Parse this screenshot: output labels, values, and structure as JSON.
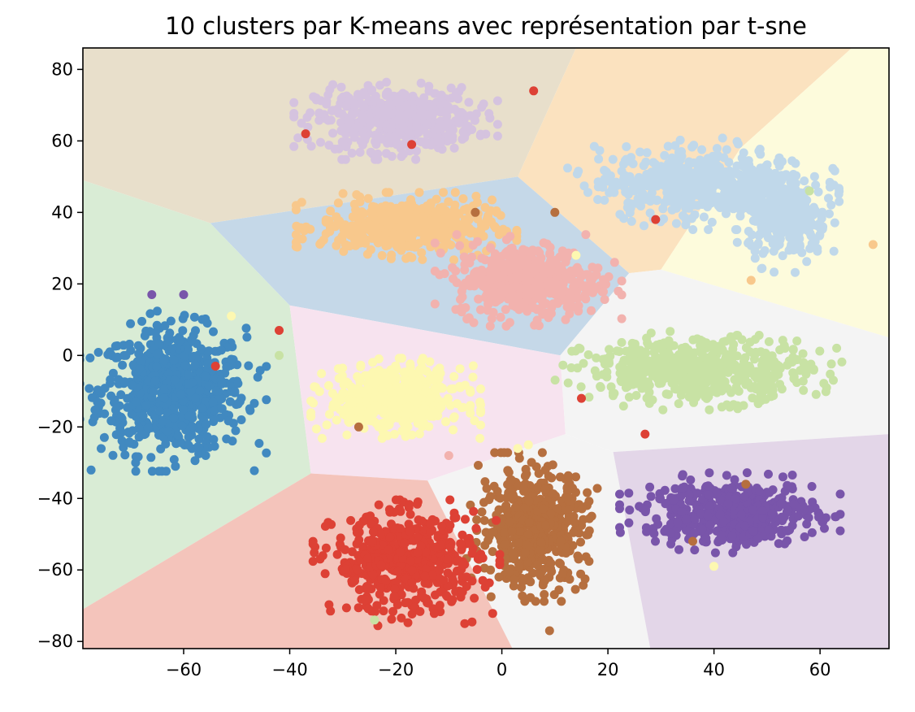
{
  "chart_data": {
    "type": "scatter",
    "title": "10 clusters par K-means avec représentation par t-sne",
    "xlabel": "",
    "ylabel": "",
    "xlim": [
      -79,
      73
    ],
    "ylim": [
      -82,
      86
    ],
    "grid": false,
    "legend": "none",
    "x_ticks": [
      -60,
      -40,
      -20,
      0,
      20,
      40,
      60
    ],
    "x_tick_labels": [
      "−60",
      "−40",
      "−20",
      "0",
      "20",
      "40",
      "60"
    ],
    "y_ticks": [
      -80,
      -60,
      -40,
      -20,
      0,
      20,
      40,
      60,
      80
    ],
    "y_tick_labels": [
      "−80",
      "−60",
      "−40",
      "−20",
      "0",
      "20",
      "40",
      "60",
      "80"
    ],
    "background_regions": [
      {
        "color": "#e8dfcb",
        "polygon": [
          [
            -79,
            86
          ],
          [
            14,
            86
          ],
          [
            3,
            50
          ],
          [
            -55,
            37
          ],
          [
            -79,
            49
          ]
        ]
      },
      {
        "color": "#fbe2bf",
        "polygon": [
          [
            14,
            86
          ],
          [
            66,
            86
          ],
          [
            45,
            58
          ],
          [
            30,
            24
          ],
          [
            24,
            23
          ],
          [
            3,
            50
          ]
        ]
      },
      {
        "color": "#fdfbdc",
        "polygon": [
          [
            66,
            86
          ],
          [
            73,
            86
          ],
          [
            73,
            5
          ],
          [
            30,
            24
          ],
          [
            45,
            58
          ]
        ]
      },
      {
        "color": "#c5d8e8",
        "polygon": [
          [
            3,
            50
          ],
          [
            24,
            23
          ],
          [
            11,
            0
          ],
          [
            -40,
            14
          ],
          [
            -55,
            37
          ]
        ]
      },
      {
        "color": "#d9ecd5",
        "polygon": [
          [
            -79,
            49
          ],
          [
            -55,
            37
          ],
          [
            -40,
            14
          ],
          [
            -36,
            -33
          ],
          [
            -79,
            -71
          ]
        ]
      },
      {
        "color": "#f7e3ef",
        "polygon": [
          [
            -40,
            14
          ],
          [
            11,
            0
          ],
          [
            12,
            -22
          ],
          [
            -14,
            -35
          ],
          [
            -36,
            -33
          ]
        ]
      },
      {
        "color": "#f4f4f4",
        "polygon": [
          [
            24,
            23
          ],
          [
            30,
            24
          ],
          [
            73,
            5
          ],
          [
            73,
            -22
          ],
          [
            21,
            -27
          ],
          [
            12,
            -22
          ],
          [
            11,
            0
          ]
        ]
      },
      {
        "color": "#f4f4f4",
        "polygon": [
          [
            -14,
            -35
          ],
          [
            12,
            -22
          ],
          [
            21,
            -27
          ],
          [
            28,
            -82
          ],
          [
            2,
            -82
          ]
        ]
      },
      {
        "color": "#e3d6e8",
        "polygon": [
          [
            21,
            -27
          ],
          [
            73,
            -22
          ],
          [
            73,
            -82
          ],
          [
            28,
            -82
          ]
        ]
      },
      {
        "color": "#f4c4bb",
        "polygon": [
          [
            -79,
            -71
          ],
          [
            -36,
            -33
          ],
          [
            -14,
            -35
          ],
          [
            2,
            -82
          ],
          [
            -79,
            -82
          ]
        ]
      }
    ],
    "clusters": [
      {
        "color": "#4189c0",
        "center": [
          -62,
          -10
        ],
        "spread": [
          11,
          14
        ],
        "count": 700
      },
      {
        "color": "#d5c3df",
        "center": [
          -20,
          66
        ],
        "spread": [
          12,
          7
        ],
        "count": 480
      },
      {
        "color": "#f8c88c",
        "center": [
          -18,
          36
        ],
        "spread": [
          13,
          6
        ],
        "count": 480
      },
      {
        "color": "#f2b2ae",
        "center": [
          5,
          21
        ],
        "spread": [
          11,
          8
        ],
        "count": 480
      },
      {
        "color": "#c0d8ea",
        "center": [
          38,
          48
        ],
        "spread": [
          16,
          8
        ],
        "count": 560
      },
      {
        "color": "#c0d8ea",
        "center": [
          54,
          36
        ],
        "spread": [
          6,
          8
        ],
        "count": 220
      },
      {
        "color": "#fdf8b1",
        "center": [
          -20,
          -12
        ],
        "spread": [
          10,
          7
        ],
        "count": 500
      },
      {
        "color": "#c8e2a4",
        "center": [
          37,
          -4
        ],
        "spread": [
          17,
          7
        ],
        "count": 540
      },
      {
        "color": "#b66f3f",
        "center": [
          6,
          -48
        ],
        "spread": [
          8,
          13
        ],
        "count": 520
      },
      {
        "color": "#dd4135",
        "center": [
          -18,
          -58
        ],
        "spread": [
          11,
          11
        ],
        "count": 520
      },
      {
        "color": "#7955aa",
        "center": [
          43,
          -44
        ],
        "spread": [
          13,
          7
        ],
        "count": 500
      }
    ],
    "stray_points": [
      {
        "x": -54,
        "y": -3,
        "color": "#dd4135"
      },
      {
        "x": -42,
        "y": 7,
        "color": "#dd4135"
      },
      {
        "x": -60,
        "y": 17,
        "color": "#7955aa"
      },
      {
        "x": -66,
        "y": 17,
        "color": "#7955aa"
      },
      {
        "x": -5,
        "y": 40,
        "color": "#b66f3f"
      },
      {
        "x": 10,
        "y": 40,
        "color": "#b66f3f"
      },
      {
        "x": 29,
        "y": 38,
        "color": "#dd4135"
      },
      {
        "x": 6,
        "y": 74,
        "color": "#dd4135"
      },
      {
        "x": -17,
        "y": 59,
        "color": "#dd4135"
      },
      {
        "x": -37,
        "y": 62,
        "color": "#dd4135"
      },
      {
        "x": 15,
        "y": -12,
        "color": "#dd4135"
      },
      {
        "x": 27,
        "y": -22,
        "color": "#dd4135"
      },
      {
        "x": -27,
        "y": -20,
        "color": "#b66f3f"
      },
      {
        "x": 46,
        "y": -36,
        "color": "#b66f3f"
      },
      {
        "x": 36,
        "y": -52,
        "color": "#b66f3f"
      },
      {
        "x": 14,
        "y": 28,
        "color": "#fdf8b1"
      },
      {
        "x": -51,
        "y": 11,
        "color": "#fdf8b1"
      },
      {
        "x": 40,
        "y": -59,
        "color": "#fdf8b1"
      },
      {
        "x": -7,
        "y": -75,
        "color": "#dd4135"
      },
      {
        "x": 9,
        "y": -77,
        "color": "#b66f3f"
      },
      {
        "x": -24,
        "y": -74,
        "color": "#c8e2a4"
      },
      {
        "x": 58,
        "y": 46,
        "color": "#c8e2a4"
      },
      {
        "x": -42,
        "y": 0,
        "color": "#c8e2a4"
      },
      {
        "x": 47,
        "y": 21,
        "color": "#f8c88c"
      },
      {
        "x": 70,
        "y": 31,
        "color": "#f8c88c"
      },
      {
        "x": 3,
        "y": -26,
        "color": "#fdf8b1"
      },
      {
        "x": -10,
        "y": -28,
        "color": "#f2b2ae"
      },
      {
        "x": 5,
        "y": -25,
        "color": "#fdf8b1"
      }
    ],
    "colors": {
      "background": "#ffffff",
      "axes_frame": "#000000"
    }
  }
}
